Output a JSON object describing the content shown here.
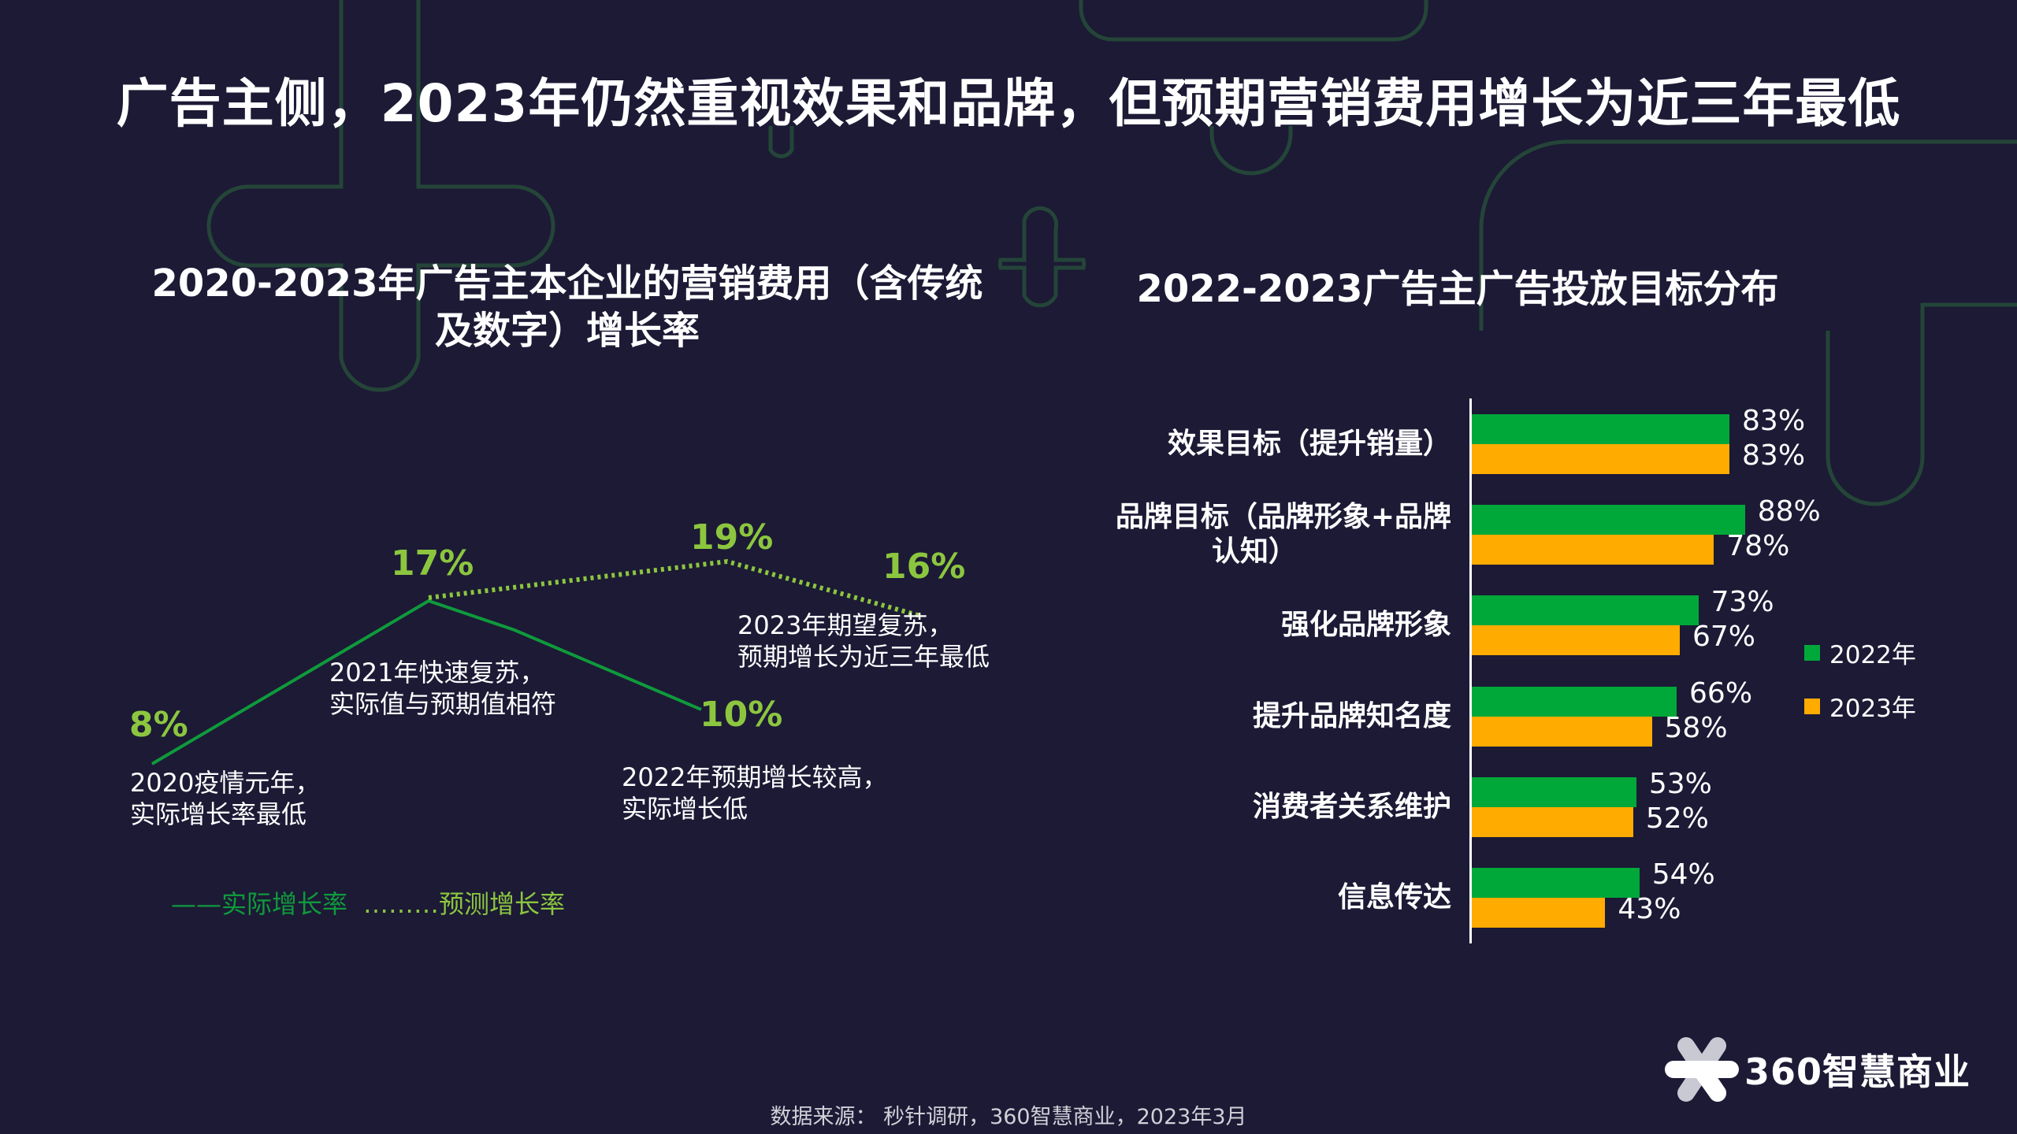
{
  "title": "广告主侧，2023年仍然重视效果和品牌，但预期营销费用增长为近三年最低",
  "colors": {
    "background": "#1c1a35",
    "actual_line": "#0f9a3c",
    "forecast_line": "#8cc63f",
    "bar_2022": "#00a83a",
    "bar_2023": "#ffab00"
  },
  "chart_data": [
    {
      "type": "line",
      "title_lines": [
        "2020-2023年广告主本企业的营销费用（含传统",
        "及数字）增长率"
      ],
      "series": [
        {
          "name": "实际增长率",
          "style": "solid",
          "x": [
            "2020",
            "2021",
            "2022"
          ],
          "values": [
            8,
            17,
            10
          ]
        },
        {
          "name": "预测增长率",
          "style": "dotted",
          "x": [
            "2021",
            "2022",
            "2023"
          ],
          "values": [
            17,
            19,
            16
          ]
        }
      ],
      "data_labels": [
        "8%",
        "17%",
        "19%",
        "16%",
        "10%"
      ],
      "annotations": [
        [
          "2020疫情元年，",
          "实际增长率最低"
        ],
        [
          "2021年快速复苏，",
          "实际值与预期值相符"
        ],
        [
          "2022年预期增长较高，",
          "实际增长低"
        ],
        [
          "2023年期望复苏，",
          "预期增长为近三年最低"
        ]
      ],
      "legend": [
        "——实际增长率",
        "………预测增长率"
      ],
      "legend_placement": "bottom-left",
      "grid": false
    },
    {
      "type": "bar",
      "orientation": "horizontal",
      "title": "2022-2023广告主广告投放目标分布",
      "categories": [
        "效果目标（提升销量）",
        "品牌目标（品牌形象+品牌认知）",
        "强化品牌形象",
        "提升品牌知名度",
        "消费者关系维护",
        "信息传达"
      ],
      "category_lines": [
        [
          "效果目标（提升销量）"
        ],
        [
          "品牌目标（品牌形象+品牌",
          "认知）"
        ],
        [
          "强化品牌形象"
        ],
        [
          "提升品牌知名度"
        ],
        [
          "消费者关系维护"
        ],
        [
          "信息传达"
        ]
      ],
      "series": [
        {
          "name": "2022年",
          "values": [
            83,
            88,
            73,
            66,
            53,
            54
          ],
          "labels": [
            "83%",
            "88%",
            "73%",
            "66%",
            "53%",
            "54%"
          ]
        },
        {
          "name": "2023年",
          "values": [
            83,
            78,
            67,
            58,
            52,
            43
          ],
          "labels": [
            "83%",
            "78%",
            "67%",
            "58%",
            "52%",
            "43%"
          ]
        }
      ],
      "unit": "%",
      "legend_placement": "right",
      "grid": false
    }
  ],
  "source": "数据来源： 秒针调研，360智慧商业，2023年3月",
  "logo": "360智慧商业"
}
